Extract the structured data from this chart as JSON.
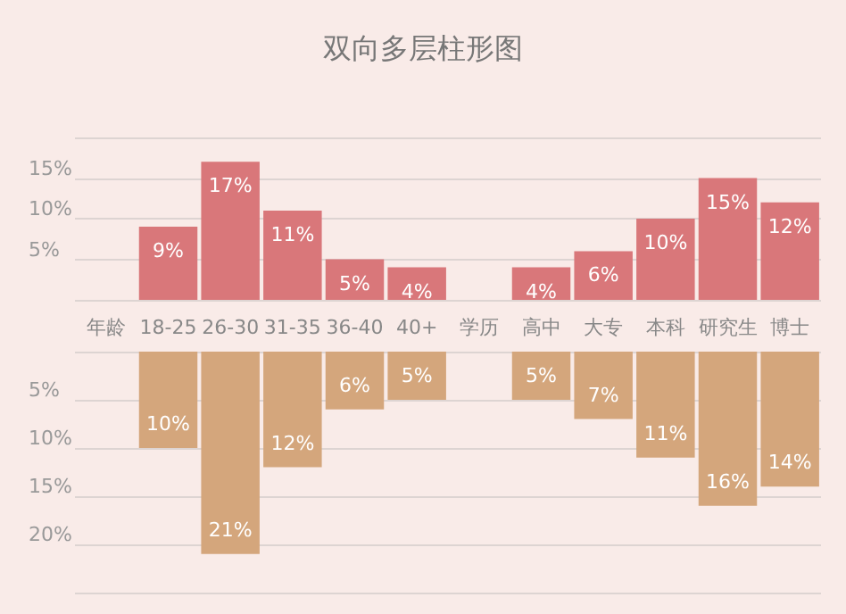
{
  "chart_data": [
    {
      "type": "bar",
      "title": "双向多层柱形图",
      "categories": [
        "年龄",
        "18-25",
        "26-30",
        "31-35",
        "36-40",
        "40+",
        "学历",
        "高中",
        "大专",
        "本科",
        "研究生",
        "博士"
      ],
      "series": [
        {
          "color": "#d9777a",
          "values": [
            null,
            9,
            17,
            11,
            5,
            4,
            null,
            4,
            6,
            10,
            15,
            12
          ],
          "value_labels": [
            null,
            "9%",
            "17%",
            "11%",
            "5%",
            "4%",
            null,
            "4%",
            "6%",
            "10%",
            "15%",
            "12%"
          ]
        }
      ],
      "ylim": [
        0,
        20
      ],
      "yticks": [
        {
          "value": 0,
          "label": null
        },
        {
          "value": 5,
          "label": "5%"
        },
        {
          "value": 10,
          "label": "10%"
        },
        {
          "value": 15,
          "label": "15%"
        },
        {
          "value": 20,
          "label": null
        }
      ],
      "grid": "y"
    },
    {
      "type": "bar",
      "categories": [
        null,
        null,
        null,
        null,
        null,
        null,
        null,
        null,
        null,
        null,
        null,
        null
      ],
      "series": [
        {
          "color": "#d4a67c",
          "values": [
            null,
            10,
            21,
            12,
            6,
            5,
            null,
            5,
            7,
            11,
            16,
            14
          ],
          "value_labels": [
            null,
            "10%",
            "21%",
            "12%",
            "6%",
            "5%",
            null,
            "5%",
            "7%",
            "11%",
            "16%",
            "14%"
          ]
        }
      ],
      "ylim": [
        25,
        0
      ],
      "yticks": [
        {
          "value": 0,
          "label": null
        },
        {
          "value": 5,
          "label": "5%"
        },
        {
          "value": 10,
          "label": "10%"
        },
        {
          "value": 15,
          "label": "15%"
        },
        {
          "value": 20,
          "label": "20%"
        },
        {
          "value": 25,
          "label": null
        }
      ],
      "grid": "y"
    }
  ]
}
